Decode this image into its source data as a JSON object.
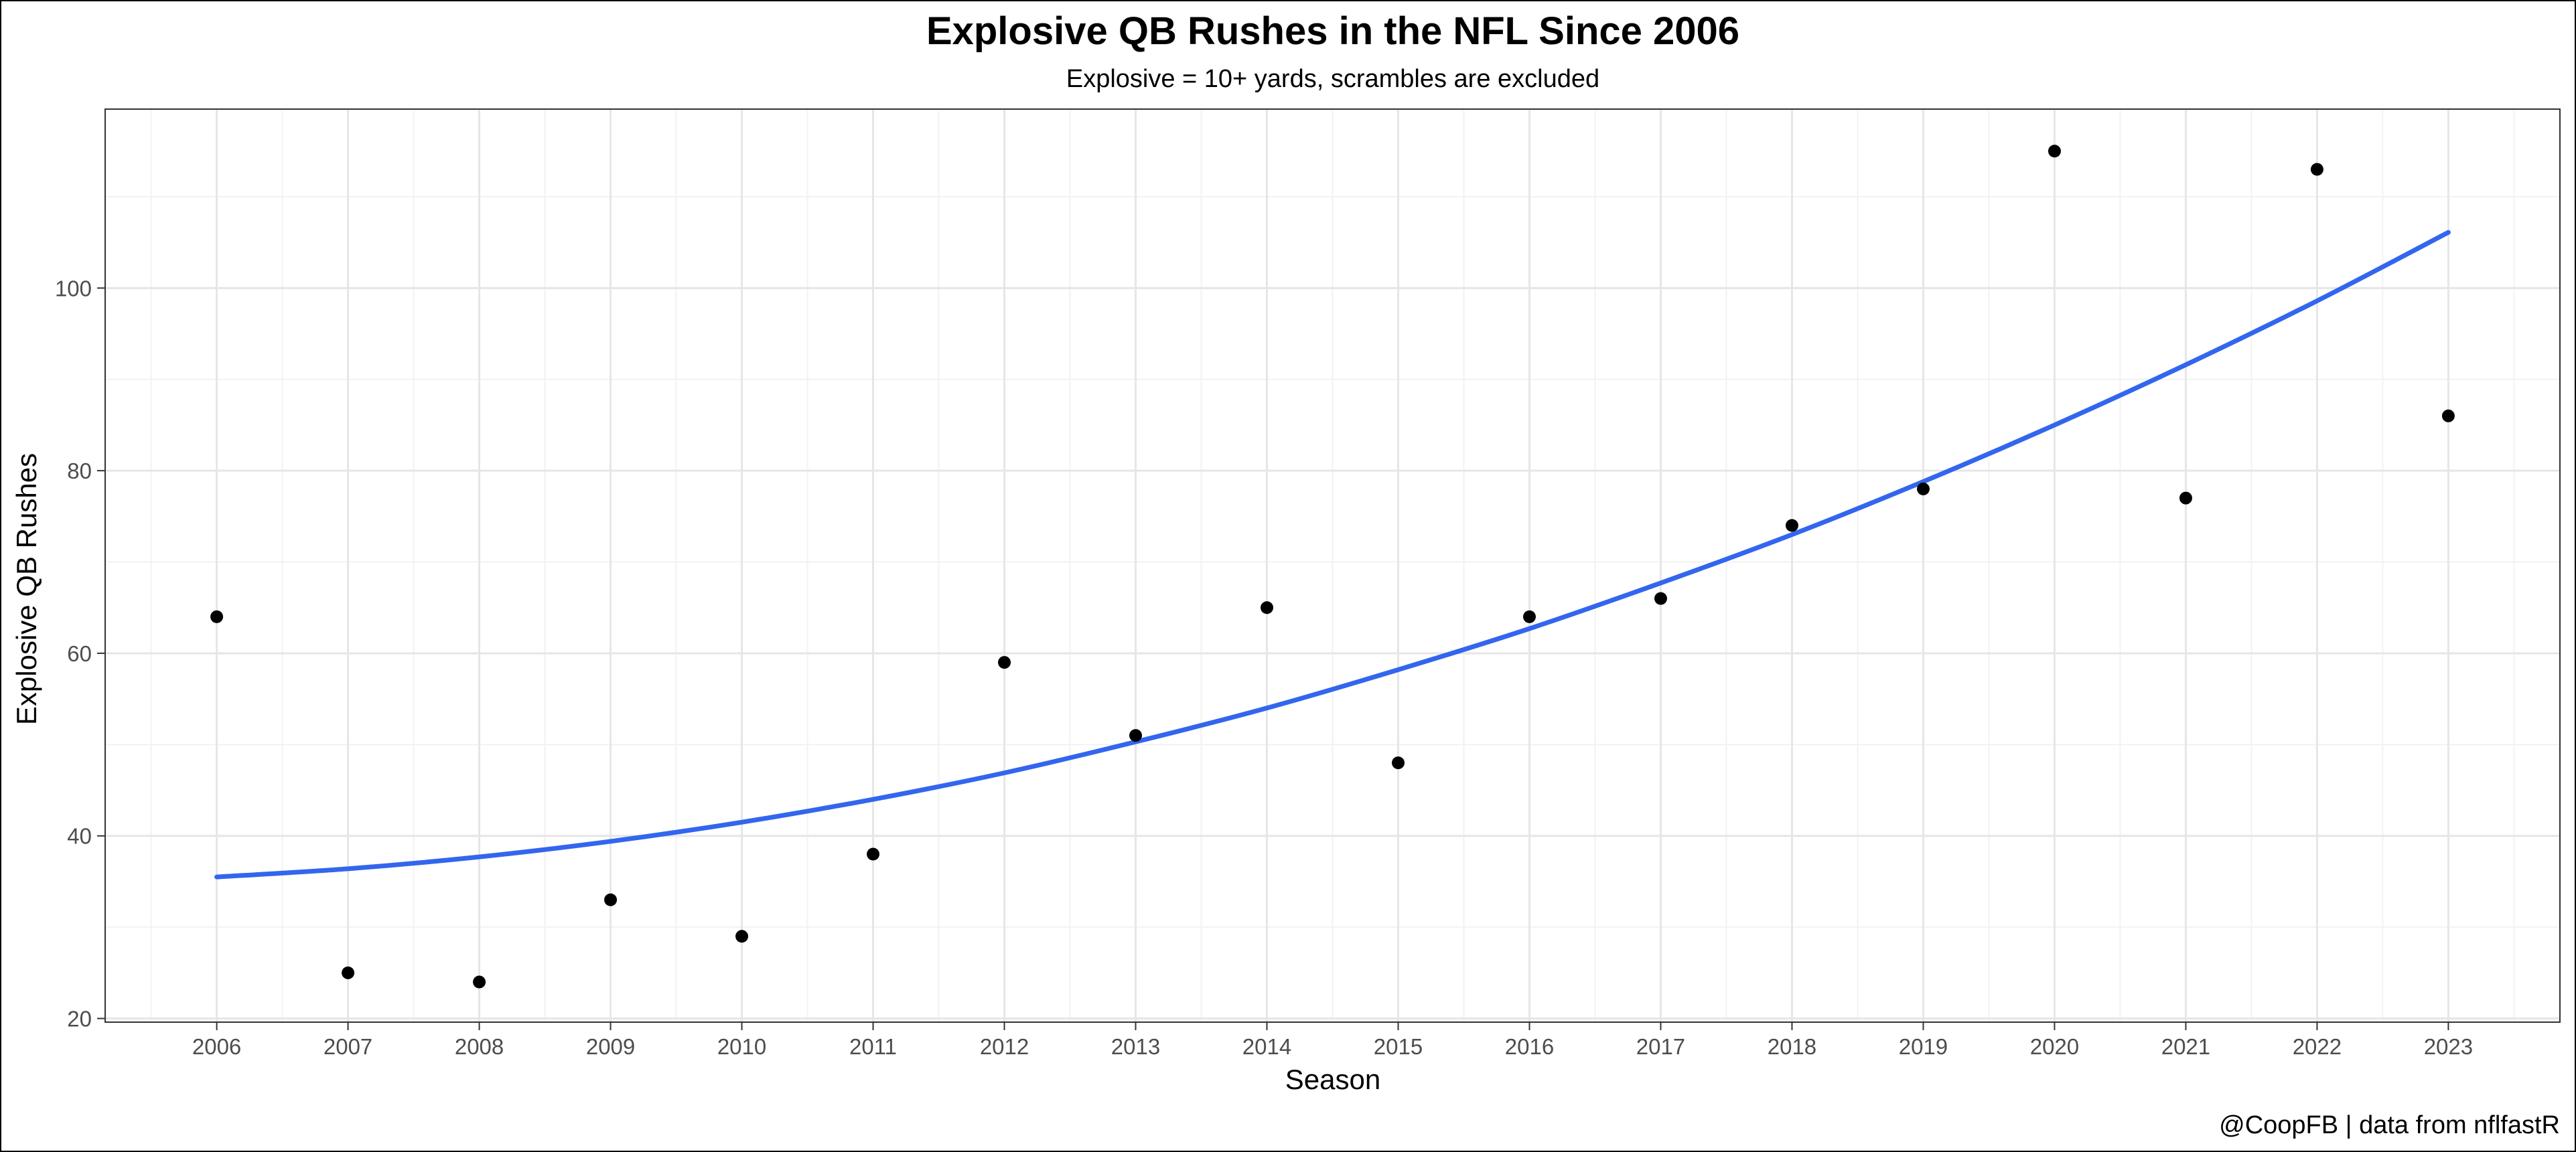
{
  "chart_data": {
    "type": "scatter",
    "title": "Explosive QB Rushes in the NFL Since 2006",
    "subtitle": "Explosive = 10+ yards, scrambles are excluded",
    "xlabel": "Season",
    "ylabel": "Explosive QB Rushes",
    "caption": "@CoopFB | data from nflfastR",
    "xlim": [
      2005.15,
      2023.85
    ],
    "ylim": [
      19.6,
      119.6
    ],
    "x_ticks": [
      2006,
      2007,
      2008,
      2009,
      2010,
      2011,
      2012,
      2013,
      2014,
      2015,
      2016,
      2017,
      2018,
      2019,
      2020,
      2021,
      2022,
      2023
    ],
    "y_ticks": [
      20,
      40,
      60,
      80,
      100
    ],
    "grid": true,
    "points_color": "#000000",
    "trend_color": "#3366ee",
    "points": [
      {
        "x": 2006,
        "y": 64
      },
      {
        "x": 2007,
        "y": 25
      },
      {
        "x": 2008,
        "y": 24
      },
      {
        "x": 2009,
        "y": 33
      },
      {
        "x": 2010,
        "y": 29
      },
      {
        "x": 2011,
        "y": 38
      },
      {
        "x": 2012,
        "y": 59
      },
      {
        "x": 2013,
        "y": 51
      },
      {
        "x": 2014,
        "y": 65
      },
      {
        "x": 2015,
        "y": 48
      },
      {
        "x": 2016,
        "y": 64
      },
      {
        "x": 2017,
        "y": 66
      },
      {
        "x": 2018,
        "y": 74
      },
      {
        "x": 2019,
        "y": 78
      },
      {
        "x": 2020,
        "y": 115
      },
      {
        "x": 2021,
        "y": 77
      },
      {
        "x": 2022,
        "y": 113
      },
      {
        "x": 2023,
        "y": 86
      }
    ],
    "trend_line": {
      "type": "quadratic",
      "x": [
        2006,
        2007,
        2008,
        2009,
        2010,
        2011,
        2012,
        2013,
        2014,
        2015,
        2016,
        2017,
        2018,
        2019,
        2020,
        2021,
        2022,
        2023
      ],
      "y": [
        35.5,
        36.4,
        37.7,
        39.4,
        41.5,
        44.0,
        46.9,
        50.3,
        54.0,
        58.2,
        62.7,
        67.7,
        73.0,
        78.8,
        85.0,
        91.6,
        98.6,
        106.1
      ]
    }
  }
}
